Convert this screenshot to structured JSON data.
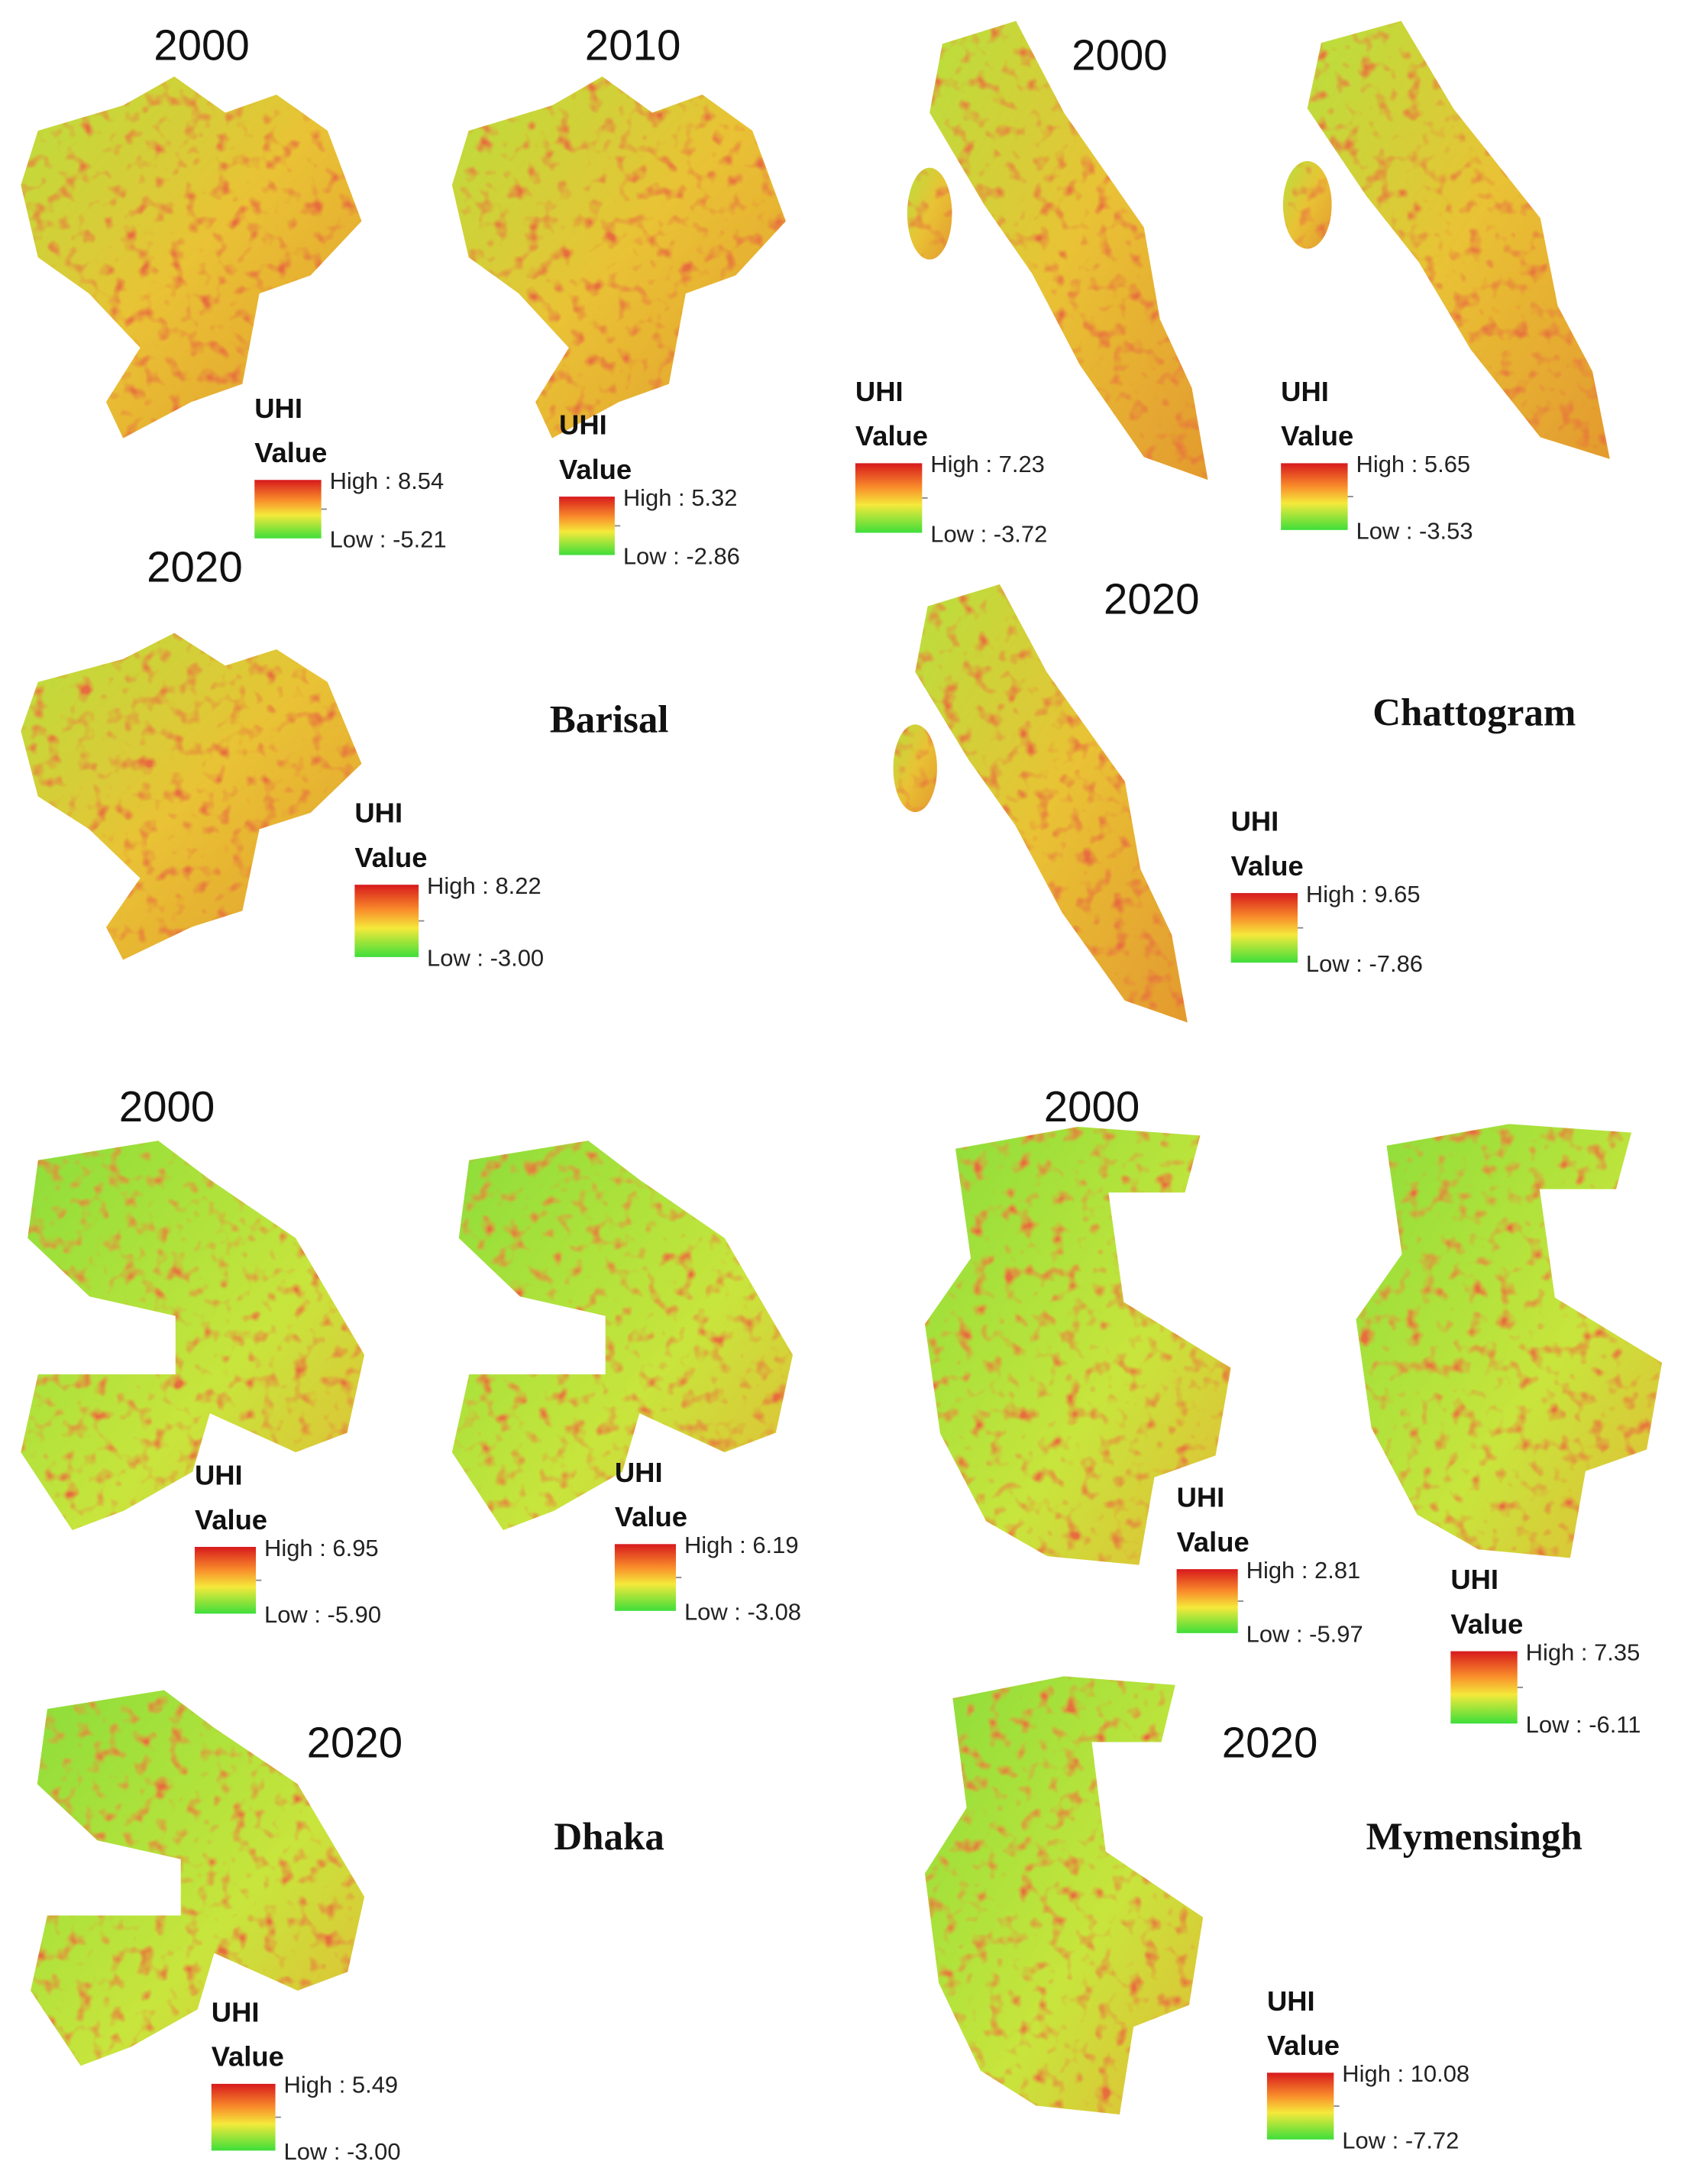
{
  "regions": [
    {
      "name": "Barisal",
      "maps": [
        {
          "year": "2000",
          "legend": {
            "title": "UHI",
            "subtitle": "Value",
            "high": "High : 8.54",
            "low": "Low : -5.21"
          }
        },
        {
          "year": "2010",
          "legend": {
            "title": "UHI",
            "subtitle": "Value",
            "high": "High : 5.32",
            "low": "Low : -2.86"
          }
        },
        {
          "year": "2020",
          "legend": {
            "title": "UHI",
            "subtitle": "Value",
            "high": "High : 8.22",
            "low": "Low : -3.00"
          }
        }
      ]
    },
    {
      "name": "Chattogram",
      "maps": [
        {
          "year": "2000",
          "legend": {
            "title": "UHI",
            "subtitle": "Value",
            "high": "High : 7.23",
            "low": "Low : -3.72"
          }
        },
        {
          "legend": {
            "title": "UHI",
            "subtitle": "Value",
            "high": "High : 5.65",
            "low": "Low : -3.53"
          }
        },
        {
          "year": "2020",
          "legend": {
            "title": "UHI",
            "subtitle": "Value",
            "high": "High : 9.65",
            "low": "Low : -7.86"
          }
        }
      ]
    },
    {
      "name": "Dhaka",
      "maps": [
        {
          "year": "2000",
          "legend": {
            "title": "UHI",
            "subtitle": "Value",
            "high": "High : 6.95",
            "low": "Low : -5.90"
          }
        },
        {
          "legend": {
            "title": "UHI",
            "subtitle": "Value",
            "high": "High : 6.19",
            "low": "Low : -3.08"
          }
        },
        {
          "year": "2020",
          "legend": {
            "title": "UHI",
            "subtitle": "Value",
            "high": "High : 5.49",
            "low": "Low : -3.00"
          }
        }
      ]
    },
    {
      "name": "Mymensingh",
      "maps": [
        {
          "year": "2000",
          "legend": {
            "title": "UHI",
            "subtitle": "Value",
            "high": "High : 2.81",
            "low": "Low : -5.97"
          }
        },
        {
          "legend": {
            "title": "UHI",
            "subtitle": "Value",
            "high": "High : 7.35",
            "low": "Low : -6.11"
          }
        },
        {
          "year": "2020",
          "legend": {
            "title": "UHI",
            "subtitle": "Value",
            "high": "High : 10.08",
            "low": "Low : -7.72"
          }
        }
      ]
    }
  ]
}
